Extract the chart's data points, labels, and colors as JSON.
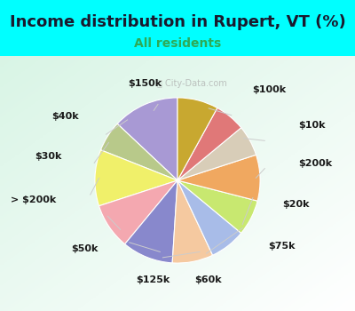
{
  "title": "Income distribution in Rupert, VT (%)",
  "subtitle": "All residents",
  "background_color": "#00FFFF",
  "labels": [
    "$100k",
    "$10k",
    "$200k",
    "$20k",
    "$75k",
    "$60k",
    "$125k",
    "$50k",
    "> $200k",
    "$30k",
    "$40k",
    "$150k"
  ],
  "values": [
    13,
    6,
    11,
    9,
    10,
    8,
    7,
    7,
    9,
    6,
    6,
    8
  ],
  "colors": [
    "#a899d4",
    "#b8c98a",
    "#f0f06a",
    "#f4a8b0",
    "#8888cc",
    "#f5c9a0",
    "#a8bce8",
    "#c8e870",
    "#f0a860",
    "#d8cdb8",
    "#e07878",
    "#c8a830"
  ],
  "title_fontsize": 13,
  "subtitle_fontsize": 10,
  "label_fontsize": 8,
  "startangle": 90
}
